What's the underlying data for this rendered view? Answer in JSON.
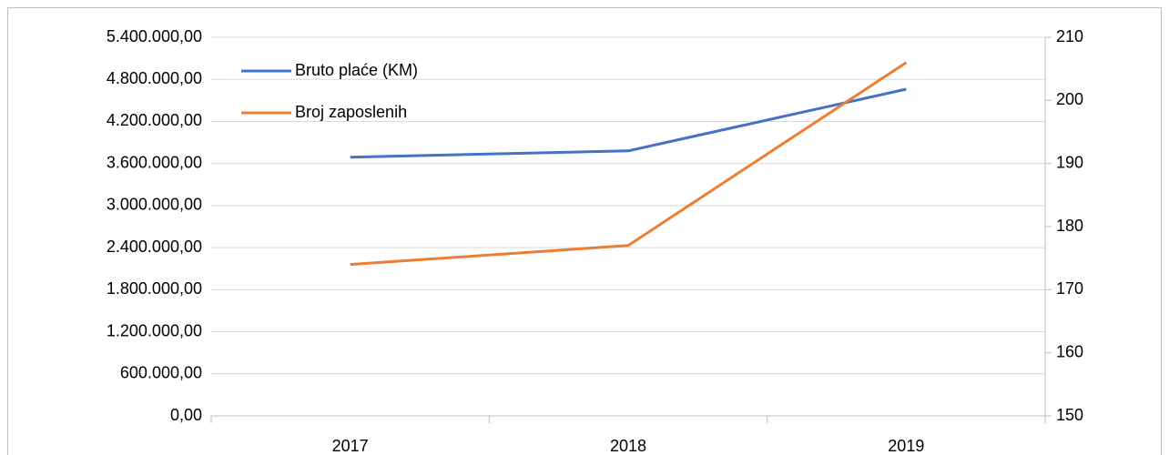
{
  "chart_data": {
    "type": "line",
    "categories": [
      "2017",
      "2018",
      "2019"
    ],
    "series": [
      {
        "name": "Bruto plaće (KM)",
        "color": "#4472c4",
        "values": [
          3690000,
          3780000,
          4660000
        ]
      },
      {
        "name": "Broj zaposlenih",
        "color": "#ed7d31",
        "axis": "y2",
        "values": [
          174,
          177,
          206
        ]
      }
    ],
    "ylim": [
      0,
      5400000
    ],
    "yticks": [
      {
        "value": 0,
        "label": "0,00"
      },
      {
        "value": 600000,
        "label": "600.000,00"
      },
      {
        "value": 1200000,
        "label": "1.200.000,00"
      },
      {
        "value": 1800000,
        "label": "1.800.000,00"
      },
      {
        "value": 2400000,
        "label": "2.400.000,00"
      },
      {
        "value": 3000000,
        "label": "3.000.000,00"
      },
      {
        "value": 3600000,
        "label": "3.600.000,00"
      },
      {
        "value": 4200000,
        "label": "4.200.000,00"
      },
      {
        "value": 4800000,
        "label": "4.800.000,00"
      },
      {
        "value": 5400000,
        "label": "5.400.000,00"
      }
    ],
    "y2lim": [
      150,
      210
    ],
    "y2ticks": [
      150,
      160,
      170,
      180,
      190,
      200,
      210
    ],
    "grid": true,
    "legend": "upper left"
  }
}
